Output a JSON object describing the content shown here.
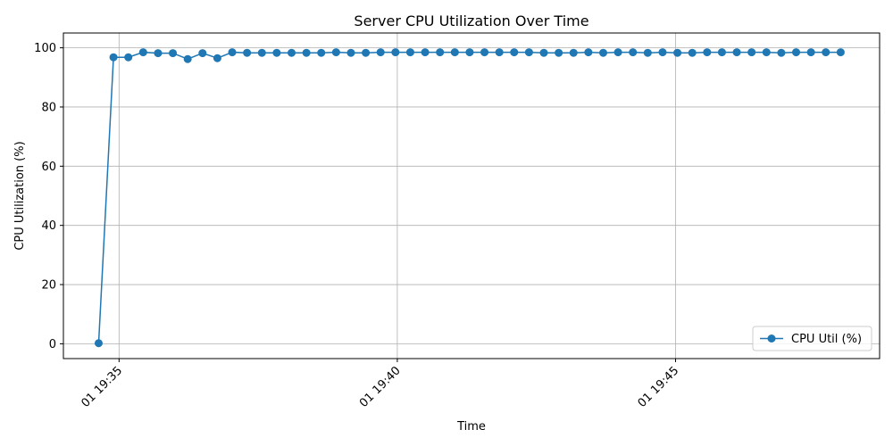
{
  "chart_data": {
    "type": "line",
    "title": "Server CPU Utilization Over Time",
    "xlabel": "Time",
    "ylabel": "CPU Utilization (%)",
    "x_ticks": [
      {
        "label": "01 19:35",
        "value": "19:35"
      },
      {
        "label": "01 19:40",
        "value": "19:40"
      },
      {
        "label": "01 19:45",
        "value": "19:45"
      }
    ],
    "y_ticks": [
      0,
      20,
      40,
      60,
      80,
      100
    ],
    "ylim": [
      -5,
      105
    ],
    "xlim": [
      "19:34:00",
      "19:48:40"
    ],
    "grid": true,
    "legend": "lower-right",
    "series": [
      {
        "name": "CPU Util (%)",
        "color": "#1f77b4",
        "x": [
          "19:34:38",
          "19:34:54",
          "19:35:10",
          "19:35:26",
          "19:35:42",
          "19:35:58",
          "19:36:14",
          "19:36:30",
          "19:36:46",
          "19:37:02",
          "19:37:18",
          "19:37:34",
          "19:37:50",
          "19:38:06",
          "19:38:22",
          "19:38:38",
          "19:38:54",
          "19:39:10",
          "19:39:26",
          "19:39:42",
          "19:39:58",
          "19:40:14",
          "19:40:30",
          "19:40:46",
          "19:41:02",
          "19:41:18",
          "19:41:34",
          "19:41:50",
          "19:42:06",
          "19:42:22",
          "19:42:38",
          "19:42:54",
          "19:43:10",
          "19:43:26",
          "19:43:42",
          "19:43:58",
          "19:44:14",
          "19:44:30",
          "19:44:46",
          "19:45:02",
          "19:45:18",
          "19:45:34",
          "19:45:50",
          "19:46:06",
          "19:46:22",
          "19:46:38",
          "19:46:54",
          "19:47:10",
          "19:47:26",
          "19:47:42",
          "19:47:58"
        ],
        "y": [
          0.2,
          96.8,
          96.8,
          98.5,
          98.2,
          98.2,
          96.2,
          98.2,
          96.5,
          98.5,
          98.3,
          98.3,
          98.3,
          98.3,
          98.3,
          98.3,
          98.5,
          98.3,
          98.3,
          98.5,
          98.5,
          98.5,
          98.5,
          98.5,
          98.5,
          98.5,
          98.5,
          98.5,
          98.5,
          98.5,
          98.3,
          98.3,
          98.3,
          98.5,
          98.3,
          98.5,
          98.5,
          98.3,
          98.5,
          98.3,
          98.3,
          98.5,
          98.5,
          98.5,
          98.5,
          98.5,
          98.3,
          98.5,
          98.5,
          98.5,
          98.5
        ]
      }
    ]
  }
}
